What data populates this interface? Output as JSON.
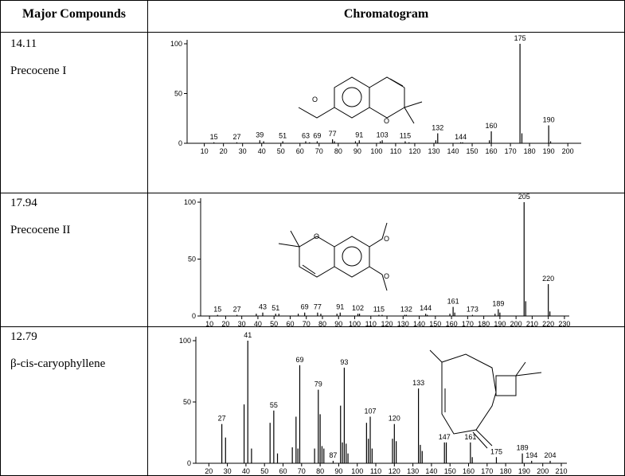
{
  "table": {
    "header": [
      "Major Compounds",
      "Chromatogram"
    ],
    "rows": [
      {
        "time": "14.11",
        "name": "Precocene I",
        "chart": {
          "type": "bar",
          "color": "#000000",
          "xlim": [
            1,
            207
          ],
          "ylim": [
            0,
            100
          ],
          "yticks": [
            0,
            50,
            100
          ],
          "xticks": [
            10,
            20,
            30,
            40,
            50,
            60,
            70,
            80,
            90,
            100,
            110,
            120,
            130,
            140,
            150,
            160,
            170,
            180,
            190,
            200
          ],
          "peaks": {
            "x": [
              15,
              27,
              39,
              51,
              63,
              69,
              77,
              91,
              103,
              115,
              132,
              144,
              160,
              175,
              190
            ],
            "values": [
              1,
              1,
              3,
              2,
              2,
              2,
              4,
              3,
              3,
              2,
              10,
              1,
              12,
              100,
              18
            ]
          },
          "minor": {
            "x": [
              41,
              65,
              78,
              89,
              102,
              117,
              131,
              145,
              159,
              176,
              191
            ],
            "values": [
              2,
              1,
              2,
              2,
              2,
              1,
              3,
              1,
              3,
              10,
              2
            ]
          }
        }
      },
      {
        "time": "17.94",
        "name": "Precocene II",
        "chart": {
          "type": "bar",
          "color": "#000000",
          "xlim": [
            4.5,
            233
          ],
          "ylim": [
            0,
            100
          ],
          "yticks": [
            0,
            50,
            100
          ],
          "xticks": [
            10,
            20,
            30,
            40,
            50,
            60,
            70,
            80,
            90,
            100,
            110,
            120,
            130,
            140,
            150,
            160,
            170,
            180,
            190,
            200,
            210,
            220,
            230
          ],
          "peaks": {
            "x": [
              15,
              27,
              43,
              51,
              69,
              77,
              91,
              102,
              115,
              132,
              144,
              161,
              173,
              189,
              205,
              220
            ],
            "values": [
              1,
              1,
              3,
              2,
              3,
              3,
              3,
              2,
              1,
              1,
              2,
              8,
              1,
              6,
              100,
              28
            ]
          },
          "minor": {
            "x": [
              39,
              53,
              65,
              79,
              89,
              103,
              117,
              131,
              145,
              159,
              162,
              187,
              190,
              206,
              221
            ],
            "values": [
              2,
              2,
              2,
              2,
              2,
              2,
              1,
              1,
              1,
              2,
              3,
              2,
              3,
              13,
              4
            ]
          }
        }
      },
      {
        "time": "12.79",
        "name": "β-cis-caryophyllene",
        "chart": {
          "type": "bar",
          "color": "#000000",
          "xlim": [
            13,
            213
          ],
          "ylim": [
            0,
            100
          ],
          "yticks": [
            0,
            50,
            100
          ],
          "xticks": [
            20,
            30,
            40,
            50,
            60,
            70,
            80,
            90,
            100,
            110,
            120,
            130,
            140,
            150,
            160,
            170,
            180,
            190,
            200,
            210
          ],
          "peaks": {
            "x": [
              27,
              41,
              55,
              69,
              79,
              87,
              93,
              107,
              120,
              133,
              147,
              161,
              175,
              189,
              194,
              204
            ],
            "values": [
              32,
              100,
              43,
              80,
              60,
              2,
              78,
              38,
              32,
              61,
              17,
              17,
              5,
              8,
              2,
              2
            ]
          },
          "minor": {
            "x": [
              29,
              39,
              43,
              53,
              57,
              65,
              67,
              68,
              77,
              80,
              81,
              82,
              91,
              92,
              94,
              95,
              105,
              106,
              108,
              119,
              121,
              134,
              135,
              148,
              162
            ],
            "values": [
              21,
              48,
              12,
              33,
              8,
              13,
              38,
              12,
              12,
              40,
              14,
              12,
              47,
              17,
              16,
              8,
              33,
              20,
              12,
              20,
              18,
              15,
              10,
              17,
              5
            ]
          }
        }
      }
    ]
  }
}
